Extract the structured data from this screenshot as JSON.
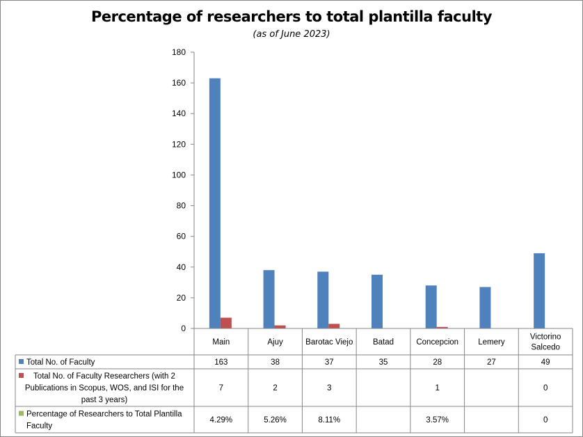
{
  "chart_data": {
    "type": "bar",
    "title": "Percentage of researchers to total plantilla faculty",
    "subtitle": "(as of June 2023)",
    "categories": [
      "Main",
      "Ajuy",
      "Barotac Viejo",
      "Batad",
      "Concepcion",
      "Lemery",
      "Victorino Salcedo"
    ],
    "category_lines": [
      [
        "Main"
      ],
      [
        "Ajuy"
      ],
      [
        "Barotac Viejo"
      ],
      [
        "Batad"
      ],
      [
        "Concepcion"
      ],
      [
        "Lemery"
      ],
      [
        "Victorino",
        "Salcedo"
      ]
    ],
    "ylim": [
      0,
      180
    ],
    "yticks": [
      0,
      20,
      40,
      60,
      80,
      100,
      120,
      140,
      160,
      180
    ],
    "grid": false,
    "legend": "data-table",
    "series": [
      {
        "name": "Total No. of Faculty",
        "name_lines": [
          "Total No. of Faculty"
        ],
        "color": "#4F81BD",
        "values": [
          163,
          38,
          37,
          35,
          28,
          27,
          49
        ],
        "table_labels": [
          "163",
          "38",
          "37",
          "35",
          "28",
          "27",
          "49"
        ]
      },
      {
        "name": "Total No. of Faculty Researchers (with 2 Publications in Scopus, WOS, and ISI for the past 3 years)",
        "name_lines": [
          "Total No. of Faculty Researchers (with 2",
          "Publications in Scopus, WOS, and ISI  for the",
          "past 3 years)"
        ],
        "color": "#C0504D",
        "values": [
          7,
          2,
          3,
          null,
          1,
          null,
          0
        ],
        "table_labels": [
          "7",
          "2",
          "3",
          "",
          "1",
          "",
          "0"
        ]
      },
      {
        "name": "Percentage of Researchers to Total Plantilla Faculty",
        "name_lines": [
          "Percentage of Researchers to Total Plantilla",
          "Faculty"
        ],
        "color": "#9BBB59",
        "values": [
          0.0429,
          0.0526,
          0.0811,
          null,
          0.0357,
          null,
          0
        ],
        "table_labels": [
          "4.29%",
          "5.26%",
          "8.11%",
          "",
          "3.57%",
          "",
          "0"
        ]
      }
    ]
  }
}
